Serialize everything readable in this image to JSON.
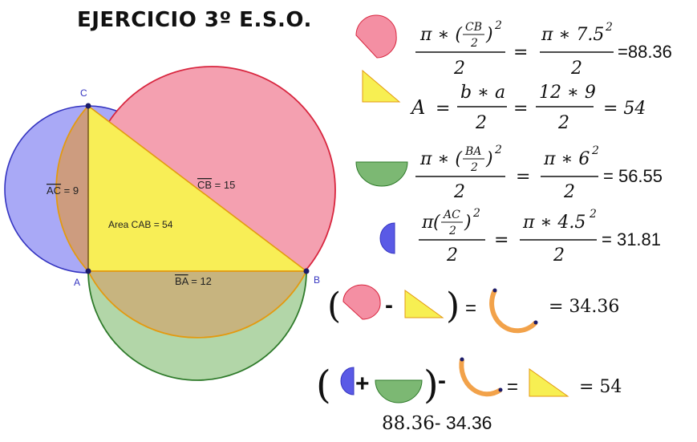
{
  "title": "EJERCICIO 3º E.S.O.",
  "colors": {
    "pink": "#f48fa3",
    "pink_stroke": "#d8253e",
    "yellow": "#f7ef52",
    "yellow_stroke": "#e39a10",
    "green": "#7cb873",
    "green_stroke": "#2e7a2a",
    "blue": "#9d9ef5",
    "blue_stroke": "#3434c0",
    "orange": "#f2a24a"
  },
  "figure": {
    "vertex_c": "C",
    "vertex_a": "A",
    "vertex_b": "B",
    "seg_ac_name": "AC",
    "seg_ac_rest": " = 9",
    "seg_cb_name": "CB",
    "seg_cb_rest": " = 15",
    "seg_ba_name": "BA",
    "seg_ba_rest": " = 12",
    "area_label": "Area CAB = 54"
  },
  "formulas": {
    "f1": {
      "pi": "π",
      "star": "∗",
      "num_top": "CB",
      "two": "2",
      "exp": "2",
      "den": "2",
      "eq": "=",
      "rhs_num": "π ∗ 7.5",
      "rhs_exp": "2",
      "rhs_den": "2",
      "result": "=88.36"
    },
    "f2": {
      "a": "A",
      "eq": "=",
      "num1": "b ∗ a",
      "den1": "2",
      "num2": "12 ∗ 9",
      "den2": "2",
      "result": "= 54"
    },
    "f3": {
      "pi": "π",
      "star": "∗",
      "num_top": "BA",
      "two": "2",
      "exp": "2",
      "den": "2",
      "eq": "=",
      "rhs_num": "π ∗ 6",
      "rhs_exp": "2",
      "rhs_den": "2",
      "result": "= 56.55"
    },
    "f4": {
      "pi": "π",
      "num_top": "AC",
      "two": "2",
      "exp": "2",
      "den": "2",
      "eq": "=",
      "rhs_num": "π ∗ 4.5",
      "rhs_exp": "2",
      "rhs_den": "2",
      "result": "= 31.81"
    },
    "f5": {
      "lparen": "(",
      "minus": "-",
      "rparen": ")",
      "eq": "=",
      "result": "= 34.36"
    },
    "f6": {
      "lparen": "(",
      "plus": "+",
      "rparen": ")",
      "minus": "-",
      "eq": "=",
      "result": "= 54"
    },
    "footer_left": "88.36",
    "footer_minus": "-",
    "footer_right": " 34.36"
  }
}
